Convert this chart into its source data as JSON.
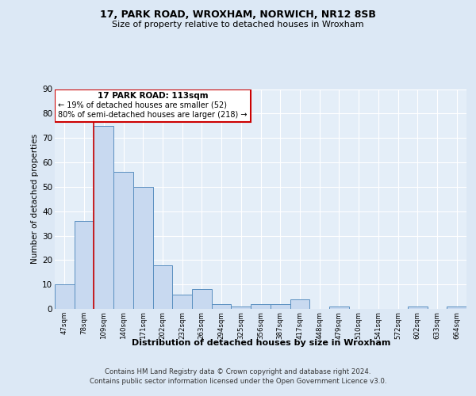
{
  "title1": "17, PARK ROAD, WROXHAM, NORWICH, NR12 8SB",
  "title2": "Size of property relative to detached houses in Wroxham",
  "xlabel": "Distribution of detached houses by size in Wroxham",
  "ylabel": "Number of detached properties",
  "bin_labels": [
    "47sqm",
    "78sqm",
    "109sqm",
    "140sqm",
    "171sqm",
    "202sqm",
    "232sqm",
    "263sqm",
    "294sqm",
    "325sqm",
    "356sqm",
    "387sqm",
    "417sqm",
    "448sqm",
    "479sqm",
    "510sqm",
    "541sqm",
    "572sqm",
    "602sqm",
    "633sqm",
    "664sqm"
  ],
  "bar_heights": [
    10,
    36,
    75,
    56,
    50,
    18,
    6,
    8,
    2,
    1,
    2,
    2,
    4,
    0,
    1,
    0,
    0,
    0,
    1,
    0,
    1
  ],
  "bar_color": "#c8d9f0",
  "bar_edge_color": "#5a8fc0",
  "property_line_label": "17 PARK ROAD: 113sqm",
  "annotation_line1": "← 19% of detached houses are smaller (52)",
  "annotation_line2": "80% of semi-detached houses are larger (218) →",
  "annotation_box_edge": "#cc0000",
  "property_line_color": "#cc0000",
  "ylim": [
    0,
    90
  ],
  "yticks": [
    0,
    10,
    20,
    30,
    40,
    50,
    60,
    70,
    80,
    90
  ],
  "footer1": "Contains HM Land Registry data © Crown copyright and database right 2024.",
  "footer2": "Contains public sector information licensed under the Open Government Licence v3.0.",
  "bg_color": "#dce8f5",
  "plot_bg_color": "#e4eef8"
}
